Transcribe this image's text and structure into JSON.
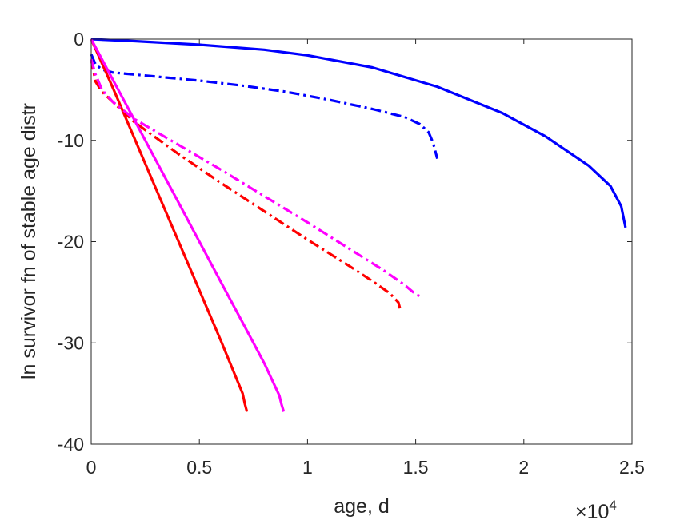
{
  "chart_data": {
    "type": "line",
    "title": "",
    "xlabel": "age, d",
    "ylabel": "ln survivor fn of stable age distr",
    "x_exponent_label": {
      "base": "×10",
      "power": "4"
    },
    "xlim": [
      0,
      2.5
    ],
    "ylim": [
      -40,
      0
    ],
    "x_ticks": [
      0,
      0.5,
      1,
      1.5,
      2,
      2.5
    ],
    "x_tick_labels": [
      "0",
      "0.5",
      "1",
      "1.5",
      "2",
      "2.5"
    ],
    "y_ticks": [
      0,
      -10,
      -20,
      -30,
      -40
    ],
    "y_tick_labels": [
      "0",
      "-10",
      "-20",
      "-30",
      "-40"
    ],
    "grid": false,
    "legend": "none",
    "series": [
      {
        "color": "#0000ff",
        "style": "solid",
        "x": [
          0,
          0.2,
          0.5,
          0.8,
          1.0,
          1.3,
          1.6,
          1.9,
          2.1,
          2.3,
          2.4,
          2.45,
          2.47
        ],
        "y": [
          0,
          -0.2,
          -0.55,
          -1.05,
          -1.6,
          -2.8,
          -4.7,
          -7.3,
          -9.6,
          -12.5,
          -14.5,
          -16.5,
          -18.6
        ]
      },
      {
        "color": "#0000ff",
        "style": "dashdot",
        "x": [
          0,
          0.02,
          0.05,
          0.1,
          0.3,
          0.5,
          0.7,
          0.9,
          1.1,
          1.3,
          1.45,
          1.52,
          1.56,
          1.58,
          1.6
        ],
        "y": [
          -1.5,
          -2.5,
          -3.0,
          -3.3,
          -3.7,
          -4.1,
          -4.6,
          -5.2,
          -6.0,
          -6.9,
          -7.7,
          -8.4,
          -9.2,
          -10.2,
          -11.8
        ]
      },
      {
        "color": "#ff0000",
        "style": "solid",
        "x": [
          0,
          0.1,
          0.2,
          0.3,
          0.4,
          0.5,
          0.6,
          0.7,
          0.71,
          0.72
        ],
        "y": [
          0,
          -4.8,
          -9.8,
          -14.8,
          -19.8,
          -24.8,
          -29.8,
          -35.0,
          -36.0,
          -36.8
        ]
      },
      {
        "color": "#ff0000",
        "style": "dashdot",
        "x": [
          0,
          0.02,
          0.05,
          0.1,
          0.2,
          0.4,
          0.6,
          0.8,
          1.0,
          1.2,
          1.3,
          1.38,
          1.42,
          1.43
        ],
        "y": [
          -2.0,
          -4.2,
          -5.2,
          -6.2,
          -8.2,
          -11.3,
          -14.2,
          -17.0,
          -19.8,
          -22.5,
          -23.9,
          -25.1,
          -26.0,
          -26.8
        ]
      },
      {
        "color": "#ff00ff",
        "style": "solid",
        "x": [
          0,
          0.1,
          0.2,
          0.3,
          0.4,
          0.5,
          0.6,
          0.7,
          0.8,
          0.87,
          0.88,
          0.89
        ],
        "y": [
          0,
          -4.0,
          -8.0,
          -12.0,
          -16.0,
          -20.0,
          -24.0,
          -28.0,
          -32.0,
          -35.2,
          -36.1,
          -36.8
        ]
      },
      {
        "color": "#ff00ff",
        "style": "dashdot",
        "x": [
          0,
          0.02,
          0.05,
          0.1,
          0.2,
          0.4,
          0.6,
          0.8,
          1.0,
          1.2,
          1.35,
          1.45,
          1.5,
          1.52
        ],
        "y": [
          -2.0,
          -3.5,
          -5.0,
          -6.2,
          -7.9,
          -10.4,
          -12.9,
          -15.5,
          -18.1,
          -20.8,
          -22.8,
          -24.3,
          -25.2,
          -25.4
        ]
      }
    ]
  }
}
